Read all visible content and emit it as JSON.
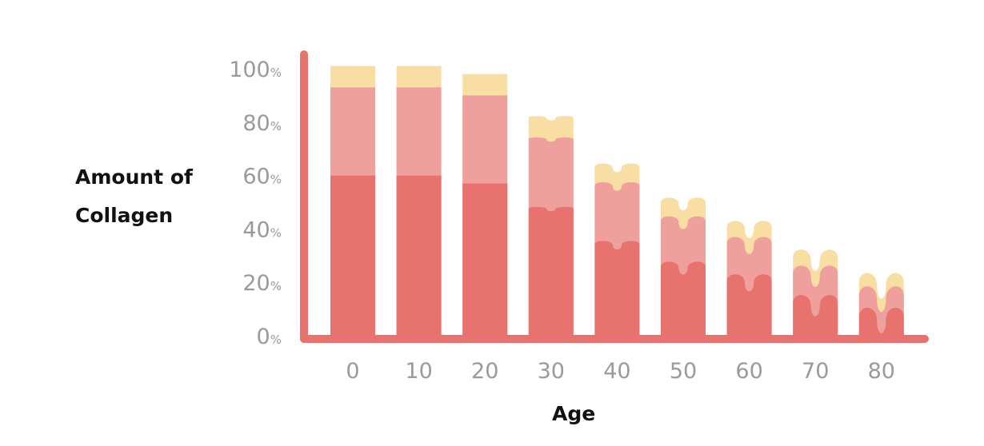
{
  "chart_data": {
    "type": "bar",
    "stacked": true,
    "categories": [
      "0",
      "10",
      "20",
      "30",
      "40",
      "50",
      "60",
      "70",
      "80"
    ],
    "series": [
      {
        "color": "#e8726e",
        "values": [
          60,
          60,
          57,
          48,
          35,
          27,
          22,
          14,
          9
        ]
      },
      {
        "color": "#efa09c",
        "values": [
          33,
          33,
          33,
          26,
          22,
          17,
          14,
          11,
          8
        ]
      },
      {
        "color": "#f8dea3",
        "values": [
          8,
          8,
          8,
          8,
          7,
          7,
          6,
          6,
          5
        ]
      }
    ],
    "ytick_labels": [
      "0%",
      "20%",
      "40%",
      "60%",
      "80%",
      "100%"
    ],
    "ytick_values": [
      0,
      20,
      40,
      60,
      80,
      100
    ],
    "ylim": [
      0,
      105
    ],
    "xlabel": "Age",
    "ylabel_lines": [
      "Amount of",
      "Collagen"
    ],
    "axis_color": "#e8726e",
    "tick_color": "#9a9a9a",
    "grid": false
  }
}
